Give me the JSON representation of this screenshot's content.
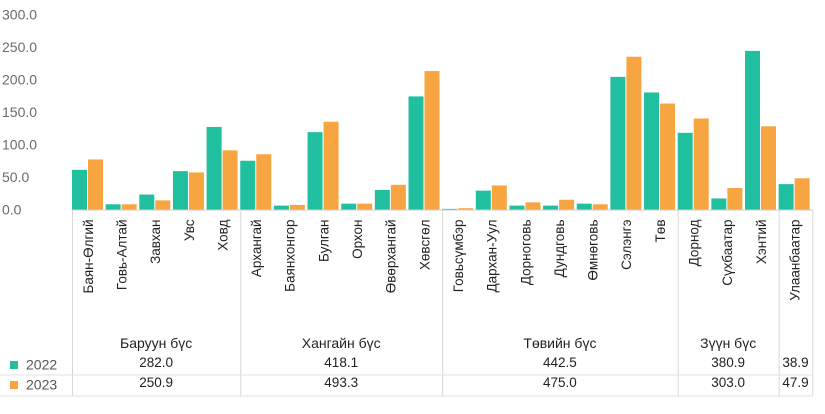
{
  "chart_data": {
    "type": "bar",
    "ylim": [
      0,
      300
    ],
    "yticks": [
      "0.0",
      "50.0",
      "100.0",
      "150.0",
      "200.0",
      "250.0",
      "300.0"
    ],
    "categories": [
      "Баян-Өлгий",
      "Говь-Алтай",
      "Завхан",
      "Увс",
      "Ховд",
      "Архангай",
      "Баянхонгор",
      "Булган",
      "Орхон",
      "Өвөрхангай",
      "Хөвсгөл",
      "Говьсүмбэр",
      "Дархан-Уул",
      "Дорноговь",
      "Дундговь",
      "Өмнөговь",
      "Сэлэнгэ",
      "Төв",
      "Дорнод",
      "Сүхбаатар",
      "Хэнтий",
      "Улаанбаатар"
    ],
    "series": [
      {
        "name": "2022",
        "color": "#1fbf9f",
        "values": [
          61,
          8,
          23,
          59,
          127,
          75,
          6,
          119,
          9,
          30,
          174,
          1,
          29,
          6,
          6,
          9,
          204,
          180,
          118,
          17,
          244,
          39
        ]
      },
      {
        "name": "2023",
        "color": "#f7a541",
        "values": [
          77,
          8,
          14,
          57,
          91,
          85,
          7,
          135,
          9,
          38,
          213,
          2,
          37,
          11,
          15,
          8,
          235,
          163,
          140,
          33,
          128,
          48
        ]
      }
    ],
    "regions": [
      {
        "name": "Баруун бүс",
        "v2022": "282.0",
        "v2023": "250.9",
        "start": 0,
        "count": 5
      },
      {
        "name": "Хангайн бүс",
        "v2022": "418.1",
        "v2023": "493.3",
        "start": 5,
        "count": 6
      },
      {
        "name": "Төвийн бүс",
        "v2022": "442.5",
        "v2023": "475.0",
        "start": 11,
        "count": 7
      },
      {
        "name": "Зүүн бүс",
        "v2022": "380.9",
        "v2023": "303.0",
        "start": 18,
        "count": 3
      },
      {
        "name": "",
        "v2022": "38.9",
        "v2023": "47.9",
        "start": 21,
        "count": 1
      }
    ],
    "legend": [
      "2022",
      "2023"
    ],
    "grid": false
  }
}
